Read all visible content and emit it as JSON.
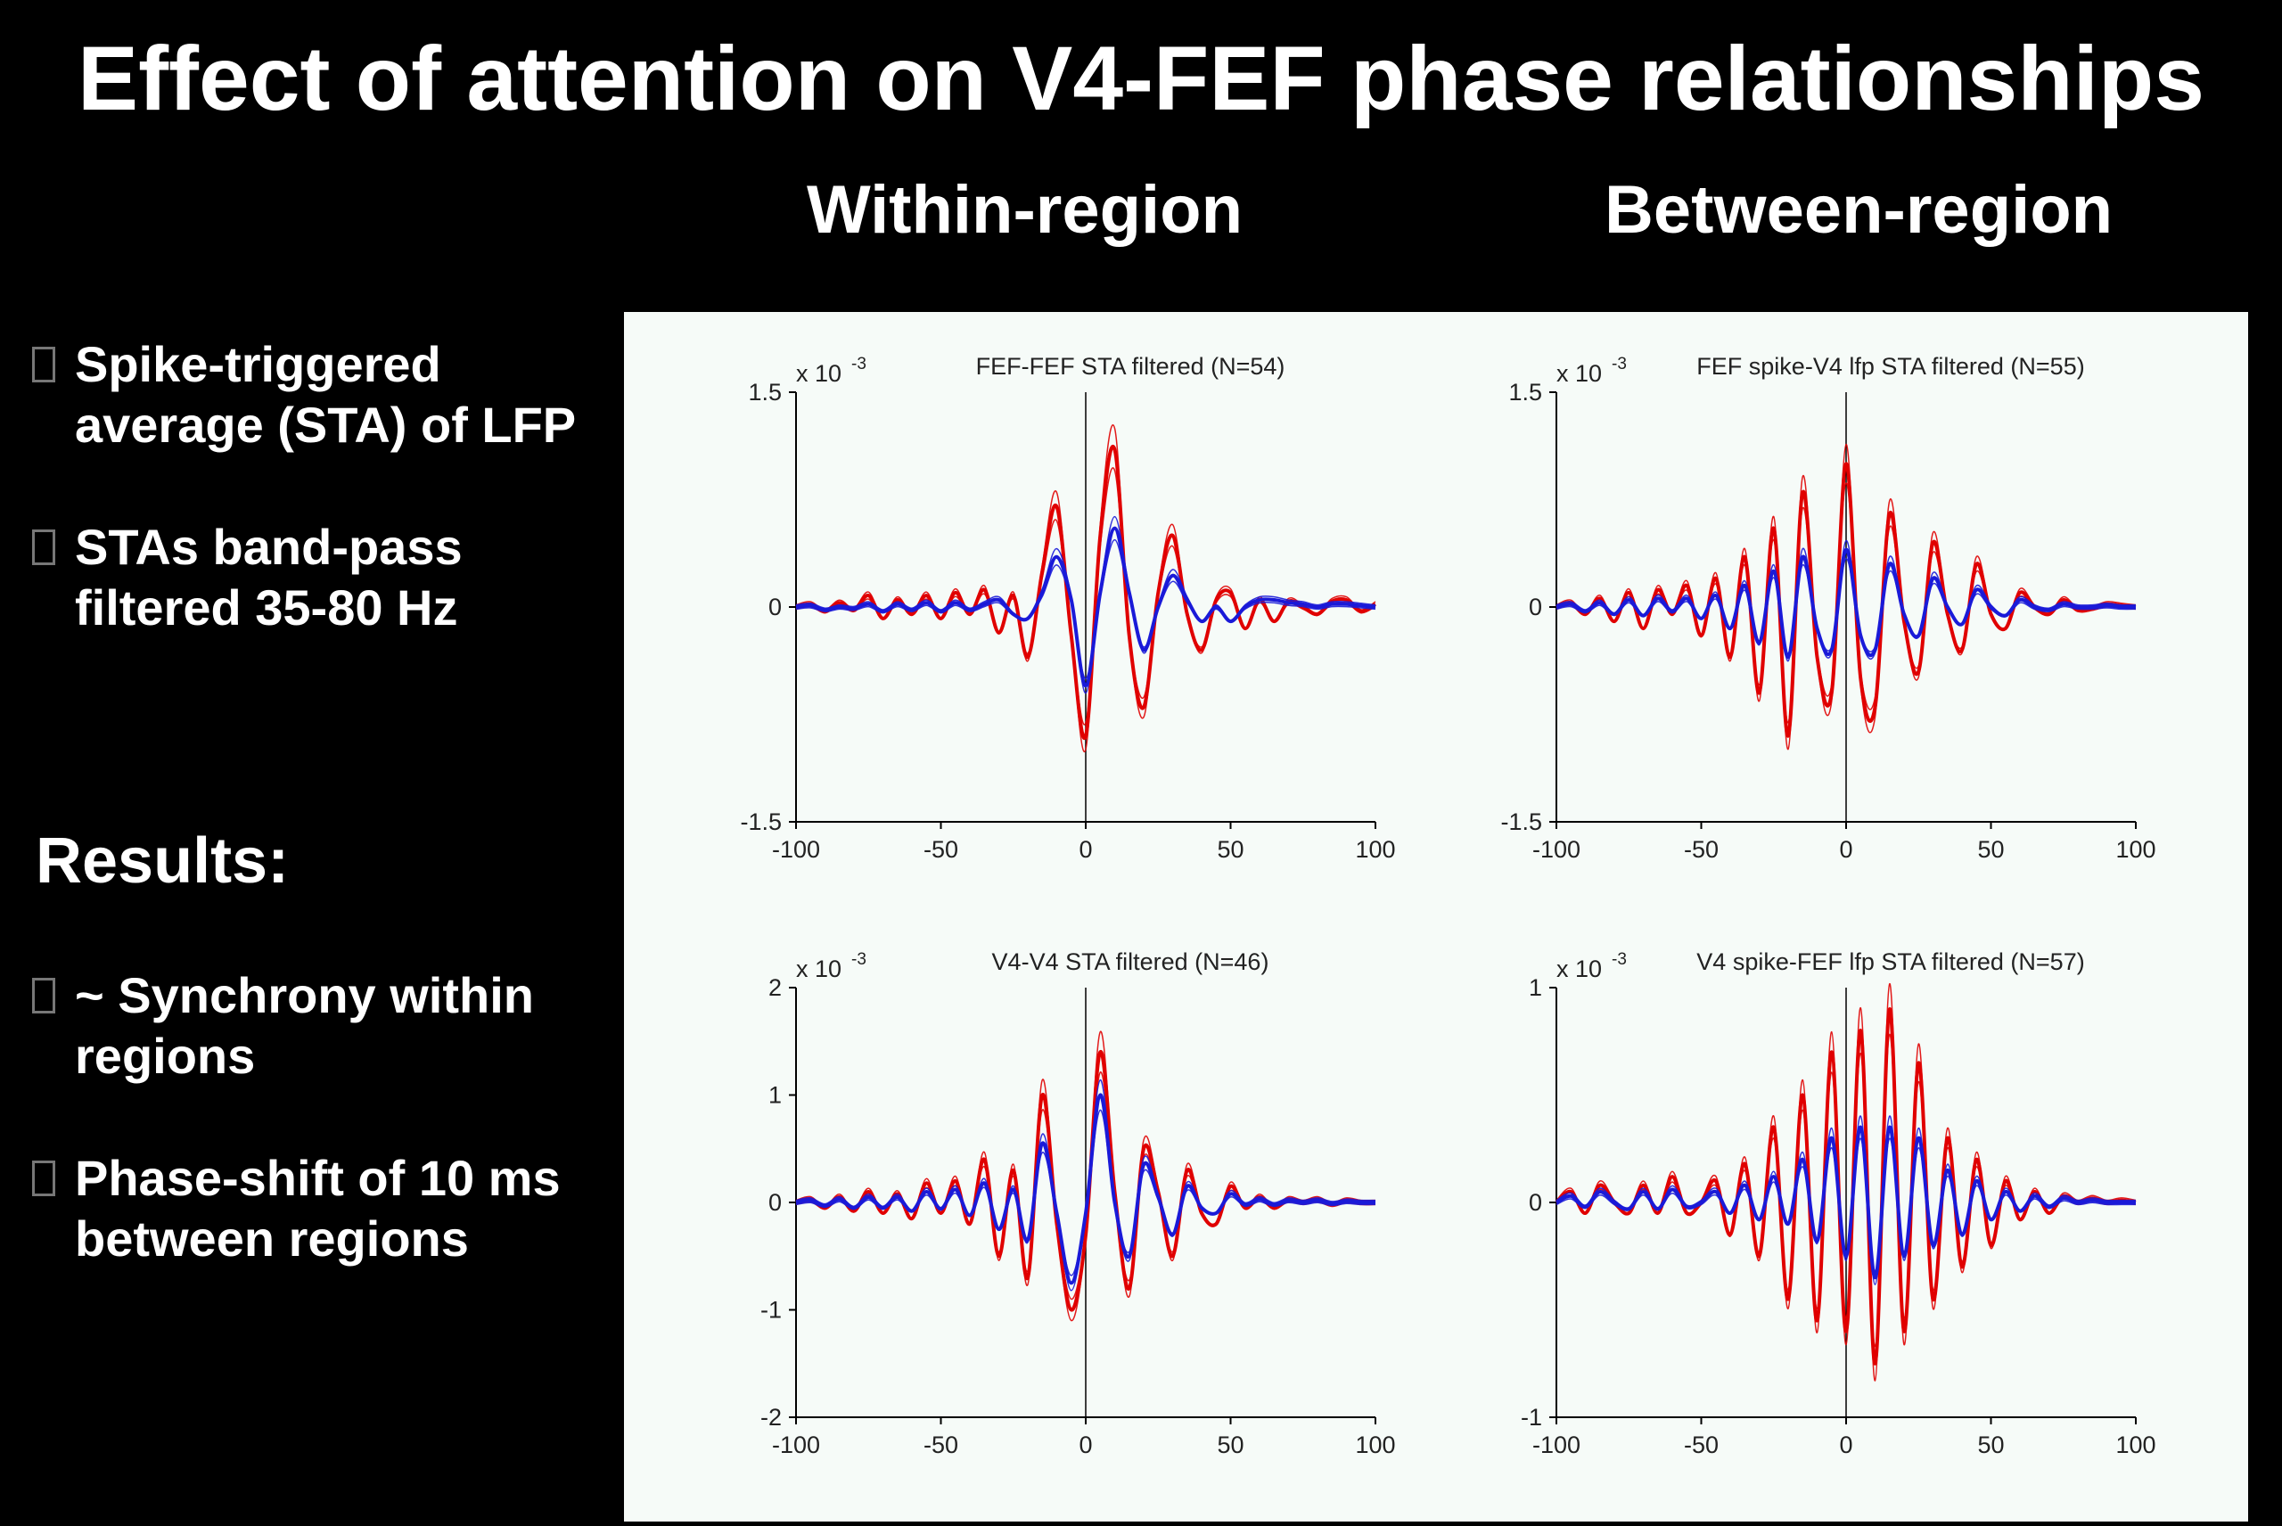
{
  "slide": {
    "title": "Effect of attention on V4-FEF phase relationships",
    "col_within": "Within-region",
    "col_between": "Between-region",
    "bullets_top": [
      [
        "Spike-triggered",
        "average (STA) of LFP"
      ],
      [
        "STAs band-pass",
        "filtered 35-80 Hz"
      ]
    ],
    "results_heading": "Results:",
    "bullets_bottom": [
      [
        "~ Synchrony within",
        "regions"
      ],
      [
        "Phase-shift of 10 ms",
        "between regions"
      ]
    ]
  },
  "colors": {
    "attend_series": "#e00000",
    "unattend_series": "#1a1ad8",
    "panel_bg": "#f6fbf8"
  },
  "chart_data": [
    {
      "type": "line",
      "title": "FEF-FEF STA filtered (N=54)",
      "scale_label": "x 10",
      "scale_exp": "-3",
      "xlim": [
        -100,
        100
      ],
      "ylim": [
        -1.5,
        1.5
      ],
      "xticks": [
        -100,
        -50,
        0,
        50,
        100
      ],
      "yticks": [
        -1.5,
        0,
        1.5
      ],
      "ytick_labels": [
        "-1.5",
        "0",
        "1.5"
      ],
      "series": [
        {
          "color": "red",
          "x": [
            -100,
            -95,
            -90,
            -85,
            -80,
            -75,
            -70,
            -65,
            -60,
            -55,
            -50,
            -45,
            -40,
            -35,
            -30,
            -25,
            -20,
            -15,
            -10,
            -5,
            0,
            5,
            10,
            15,
            20,
            25,
            30,
            35,
            40,
            45,
            50,
            55,
            60,
            65,
            70,
            75,
            80,
            85,
            90,
            95,
            100
          ],
          "y": [
            0,
            0.02,
            -0.03,
            0.03,
            -0.02,
            0.08,
            -0.08,
            0.05,
            -0.05,
            0.08,
            -0.08,
            0.1,
            -0.05,
            0.12,
            -0.18,
            0.08,
            -0.35,
            0.25,
            0.7,
            -0.2,
            -0.9,
            0.5,
            1.1,
            -0.2,
            -0.7,
            0.1,
            0.5,
            -0.05,
            -0.3,
            0.05,
            0.1,
            -0.15,
            0.05,
            -0.1,
            0.04,
            0.0,
            -0.05,
            0.04,
            0.05,
            -0.03,
            0.02
          ]
        },
        {
          "color": "blue",
          "x": [
            -100,
            -95,
            -90,
            -85,
            -80,
            -75,
            -70,
            -65,
            -60,
            -55,
            -50,
            -45,
            -40,
            -35,
            -30,
            -25,
            -20,
            -15,
            -10,
            -5,
            0,
            5,
            10,
            15,
            20,
            25,
            30,
            35,
            40,
            45,
            50,
            55,
            60,
            65,
            70,
            75,
            80,
            85,
            90,
            95,
            100
          ],
          "y": [
            0,
            0.01,
            -0.02,
            0.0,
            -0.01,
            0.02,
            -0.03,
            0.02,
            -0.02,
            0.03,
            -0.03,
            0.03,
            -0.02,
            0.02,
            0.05,
            -0.05,
            -0.08,
            0.1,
            0.35,
            0.05,
            -0.55,
            0.1,
            0.55,
            0.1,
            -0.3,
            0.0,
            0.22,
            0.05,
            -0.1,
            0.0,
            -0.1,
            0.0,
            0.05,
            0.05,
            0.03,
            0.02,
            0.0,
            0.02,
            0.02,
            0.01,
            0.0
          ]
        }
      ]
    },
    {
      "type": "line",
      "title": "FEF spike-V4 lfp STA filtered (N=55)",
      "scale_label": "x 10",
      "scale_exp": "-3",
      "xlim": [
        -100,
        100
      ],
      "ylim": [
        -1.5,
        1.5
      ],
      "xticks": [
        -100,
        -50,
        0,
        50,
        100
      ],
      "yticks": [
        -1.5,
        0,
        1.5
      ],
      "ytick_labels": [
        "-1.5",
        "0",
        "1.5"
      ],
      "series": [
        {
          "color": "red",
          "x": [
            -100,
            -95,
            -90,
            -85,
            -80,
            -75,
            -70,
            -65,
            -60,
            -55,
            -50,
            -45,
            -40,
            -35,
            -30,
            -25,
            -20,
            -15,
            -10,
            -5,
            0,
            5,
            10,
            15,
            20,
            25,
            30,
            35,
            40,
            45,
            50,
            55,
            60,
            65,
            70,
            75,
            80,
            85,
            90,
            95,
            100
          ],
          "y": [
            0,
            0.03,
            -0.05,
            0.06,
            -0.1,
            0.1,
            -0.15,
            0.12,
            -0.05,
            0.15,
            -0.2,
            0.2,
            -0.35,
            0.35,
            -0.6,
            0.55,
            -0.9,
            0.8,
            -0.35,
            -0.6,
            1.0,
            -0.5,
            -0.7,
            0.65,
            -0.1,
            -0.45,
            0.45,
            -0.05,
            -0.3,
            0.3,
            -0.05,
            -0.15,
            0.1,
            0.0,
            -0.05,
            0.05,
            -0.02,
            -0.01,
            0.02,
            0.01,
            0.0
          ]
        },
        {
          "color": "blue",
          "x": [
            -100,
            -95,
            -90,
            -85,
            -80,
            -75,
            -70,
            -65,
            -60,
            -55,
            -50,
            -45,
            -40,
            -35,
            -30,
            -25,
            -20,
            -15,
            -10,
            -5,
            0,
            5,
            10,
            15,
            20,
            25,
            30,
            35,
            40,
            45,
            50,
            55,
            60,
            65,
            70,
            75,
            80,
            85,
            90,
            95,
            100
          ],
          "y": [
            0,
            0.02,
            -0.03,
            0.03,
            -0.05,
            0.05,
            -0.06,
            0.06,
            -0.03,
            0.06,
            -0.08,
            0.08,
            -0.15,
            0.15,
            -0.25,
            0.25,
            -0.35,
            0.35,
            -0.15,
            -0.3,
            0.4,
            -0.2,
            -0.3,
            0.3,
            -0.05,
            -0.2,
            0.2,
            0.0,
            -0.12,
            0.12,
            0.0,
            -0.06,
            0.05,
            0.0,
            -0.02,
            0.02,
            0.0,
            0.0,
            0.01,
            0.0,
            0.0
          ]
        }
      ]
    },
    {
      "type": "line",
      "title": "V4-V4 STA filtered (N=46)",
      "scale_label": "x 10",
      "scale_exp": "-3",
      "xlim": [
        -100,
        100
      ],
      "ylim": [
        -2,
        2
      ],
      "xticks": [
        -100,
        -50,
        0,
        50,
        100
      ],
      "yticks": [
        -2,
        -1,
        0,
        1,
        2
      ],
      "ytick_labels": [
        "-2",
        "-1",
        "0",
        "1",
        "2"
      ],
      "series": [
        {
          "color": "red",
          "x": [
            -100,
            -95,
            -90,
            -85,
            -80,
            -75,
            -70,
            -65,
            -60,
            -55,
            -50,
            -45,
            -40,
            -35,
            -30,
            -25,
            -20,
            -15,
            -10,
            -5,
            0,
            5,
            10,
            15,
            20,
            25,
            30,
            35,
            40,
            45,
            50,
            55,
            60,
            65,
            70,
            75,
            80,
            85,
            90,
            95,
            100
          ],
          "y": [
            0,
            0.03,
            -0.05,
            0.05,
            -0.08,
            0.1,
            -0.1,
            0.08,
            -0.15,
            0.18,
            -0.1,
            0.2,
            -0.2,
            0.4,
            -0.5,
            0.3,
            -0.7,
            1.0,
            -0.2,
            -1.0,
            -0.3,
            1.4,
            0.1,
            -0.8,
            0.5,
            0.1,
            -0.5,
            0.3,
            -0.1,
            -0.2,
            0.15,
            -0.05,
            0.05,
            -0.05,
            0.03,
            0.0,
            0.03,
            -0.02,
            0.02,
            0.0,
            0.0
          ]
        },
        {
          "color": "blue",
          "x": [
            -100,
            -95,
            -90,
            -85,
            -80,
            -75,
            -70,
            -65,
            -60,
            -55,
            -50,
            -45,
            -40,
            -35,
            -30,
            -25,
            -20,
            -15,
            -10,
            -5,
            0,
            5,
            10,
            15,
            20,
            25,
            30,
            35,
            40,
            45,
            50,
            55,
            60,
            65,
            70,
            75,
            80,
            85,
            90,
            95,
            100
          ],
          "y": [
            0,
            0.02,
            -0.03,
            0.03,
            -0.05,
            0.05,
            -0.05,
            0.05,
            -0.08,
            0.1,
            -0.06,
            0.12,
            -0.12,
            0.18,
            -0.25,
            0.12,
            -0.35,
            0.55,
            -0.1,
            -0.75,
            -0.1,
            1.0,
            0.0,
            -0.5,
            0.35,
            0.05,
            -0.3,
            0.15,
            -0.05,
            -0.1,
            0.08,
            -0.02,
            0.03,
            -0.02,
            0.02,
            0.0,
            0.02,
            -0.01,
            0.01,
            0.0,
            0.0
          ]
        }
      ]
    },
    {
      "type": "line",
      "title": "V4 spike-FEF lfp STA filtered (N=57)",
      "scale_label": "x 10",
      "scale_exp": "-3",
      "xlim": [
        -100,
        100
      ],
      "ylim": [
        -1,
        1
      ],
      "xticks": [
        -100,
        -50,
        0,
        50,
        100
      ],
      "yticks": [
        -1,
        0,
        1
      ],
      "ytick_labels": [
        "-1",
        "0",
        "1"
      ],
      "series": [
        {
          "color": "red",
          "x": [
            -100,
            -95,
            -90,
            -85,
            -80,
            -75,
            -70,
            -65,
            -60,
            -55,
            -50,
            -45,
            -40,
            -35,
            -30,
            -25,
            -20,
            -15,
            -10,
            -5,
            0,
            5,
            10,
            15,
            20,
            25,
            30,
            35,
            40,
            45,
            50,
            55,
            60,
            65,
            70,
            75,
            80,
            85,
            90,
            95,
            100
          ],
          "y": [
            0,
            0.05,
            -0.05,
            0.08,
            0.0,
            -0.05,
            0.08,
            -0.05,
            0.12,
            -0.05,
            0.0,
            0.1,
            -0.15,
            0.18,
            -0.25,
            0.35,
            -0.45,
            0.5,
            -0.55,
            0.7,
            -0.6,
            0.8,
            -0.75,
            0.9,
            -0.6,
            0.65,
            -0.45,
            0.3,
            -0.3,
            0.2,
            -0.2,
            0.1,
            -0.08,
            0.05,
            -0.05,
            0.03,
            0.0,
            0.02,
            0.0,
            0.01,
            0.0
          ]
        },
        {
          "color": "blue",
          "x": [
            -100,
            -95,
            -90,
            -85,
            -80,
            -75,
            -70,
            -65,
            -60,
            -55,
            -50,
            -45,
            -40,
            -35,
            -30,
            -25,
            -20,
            -15,
            -10,
            -5,
            0,
            5,
            10,
            15,
            20,
            25,
            30,
            35,
            40,
            45,
            50,
            55,
            60,
            65,
            70,
            75,
            80,
            85,
            90,
            95,
            100
          ],
          "y": [
            0,
            0.03,
            -0.02,
            0.05,
            0.0,
            -0.03,
            0.05,
            -0.03,
            0.06,
            -0.02,
            0.0,
            0.05,
            -0.05,
            0.08,
            -0.08,
            0.12,
            -0.1,
            0.2,
            -0.18,
            0.3,
            -0.25,
            0.35,
            -0.35,
            0.35,
            -0.25,
            0.3,
            -0.2,
            0.15,
            -0.15,
            0.1,
            -0.08,
            0.05,
            -0.04,
            0.03,
            -0.02,
            0.02,
            0.0,
            0.01,
            0.0,
            0.0,
            0.0
          ]
        }
      ]
    }
  ]
}
